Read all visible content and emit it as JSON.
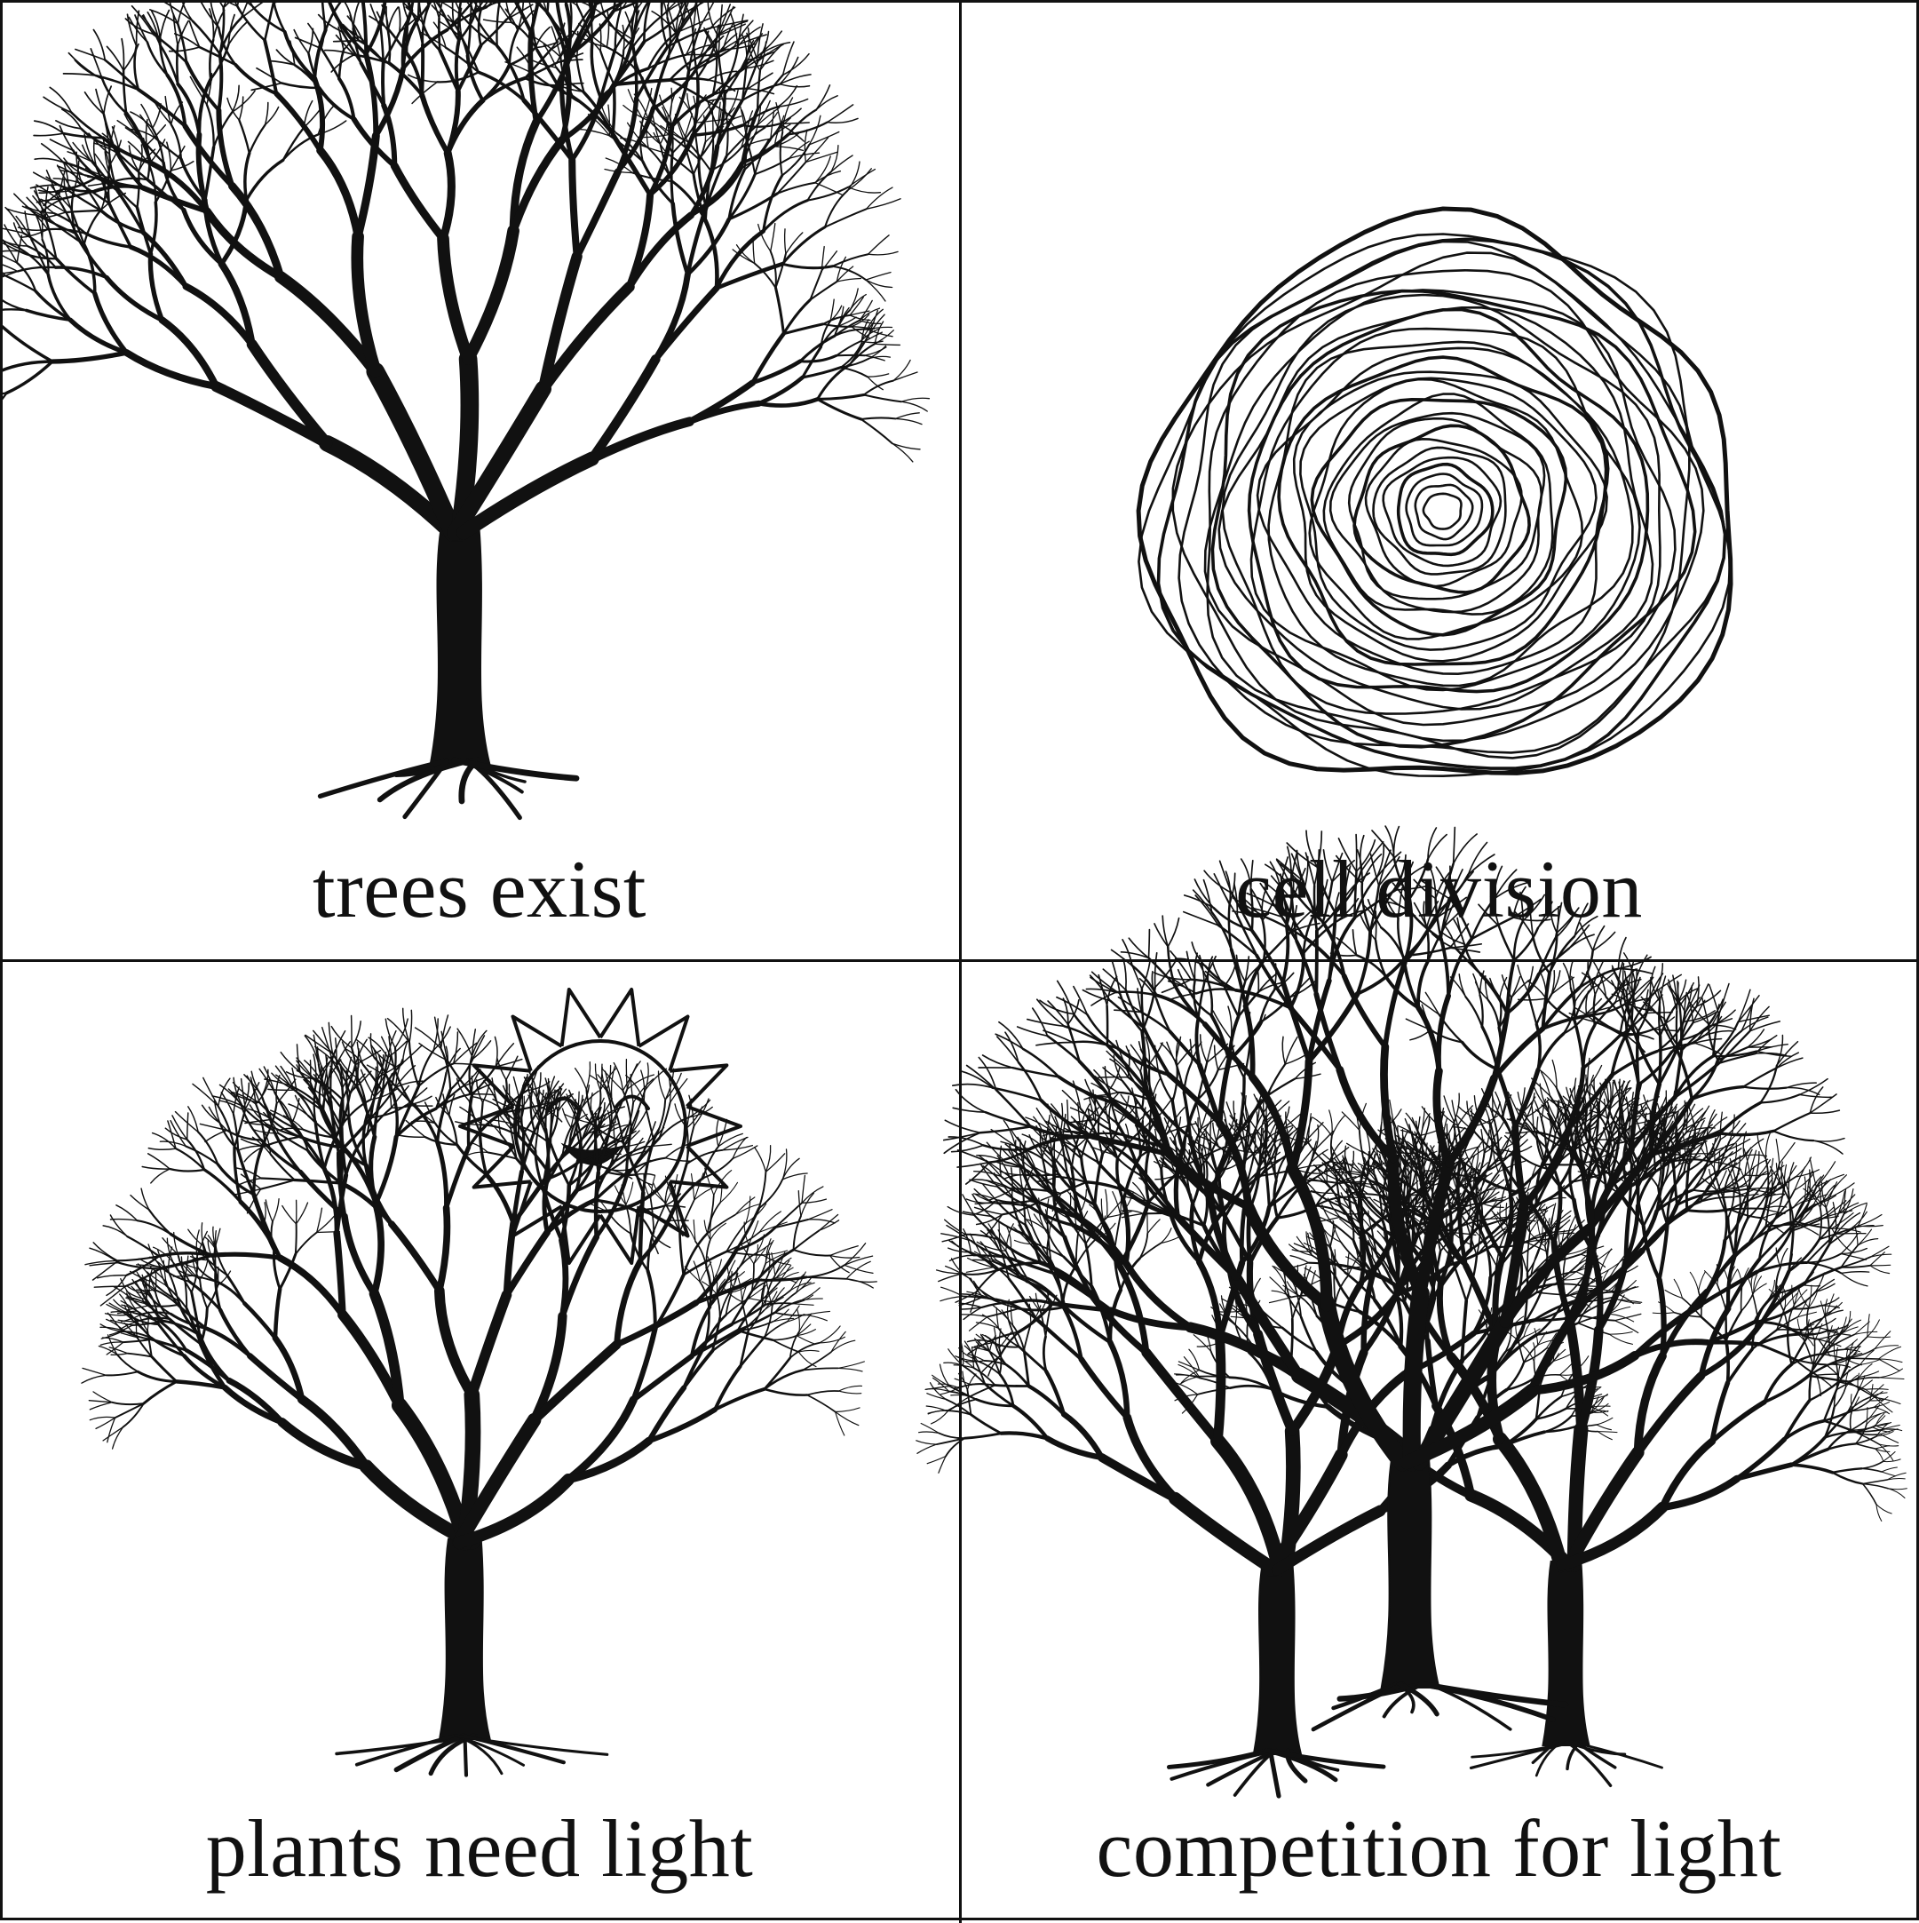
{
  "panels": [
    {
      "caption": "trees exist",
      "icon": "tree-icon"
    },
    {
      "caption": "cell division",
      "icon": "tree-rings-icon"
    },
    {
      "caption": "plants need light",
      "icon": "sun-and-tree-icon"
    },
    {
      "caption": "competition for light",
      "icon": "three-trees-icon"
    }
  ],
  "colors": {
    "ink": "#111111",
    "background": "#ffffff"
  }
}
